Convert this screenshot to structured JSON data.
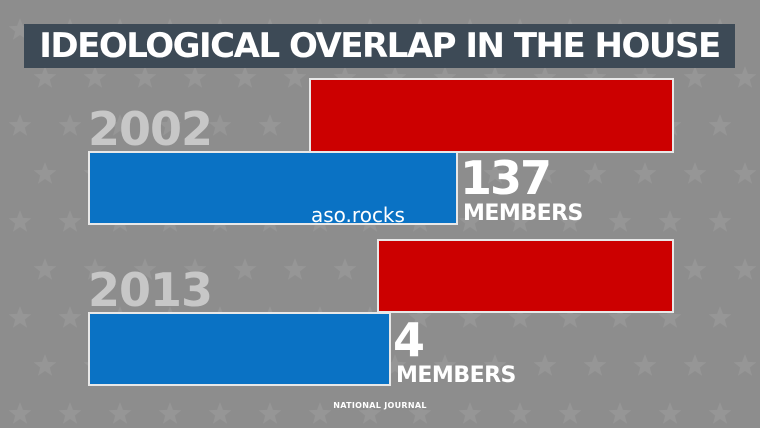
{
  "title": "IDEOLOGICAL OVERLAP IN THE HOUSE",
  "source": "NATIONAL JOURNAL",
  "watermark": "aso.rocks",
  "colors": {
    "republican": "#cc0000",
    "democrat": "#0a72c4",
    "title_bg": "#3d4a56",
    "background": "#8d8d8d"
  },
  "chart_data": {
    "type": "bar",
    "title": "IDEOLOGICAL OVERLAP IN THE HOUSE",
    "categories": [
      "2002",
      "2013"
    ],
    "series": [
      {
        "color": "#cc0000"
      },
      {
        "color": "#0a72c4"
      }
    ],
    "overlap": [
      {
        "year": "2002",
        "count": "137",
        "unit": "MEMBERS"
      },
      {
        "year": "2013",
        "count": "4",
        "unit": "MEMBERS"
      }
    ]
  }
}
